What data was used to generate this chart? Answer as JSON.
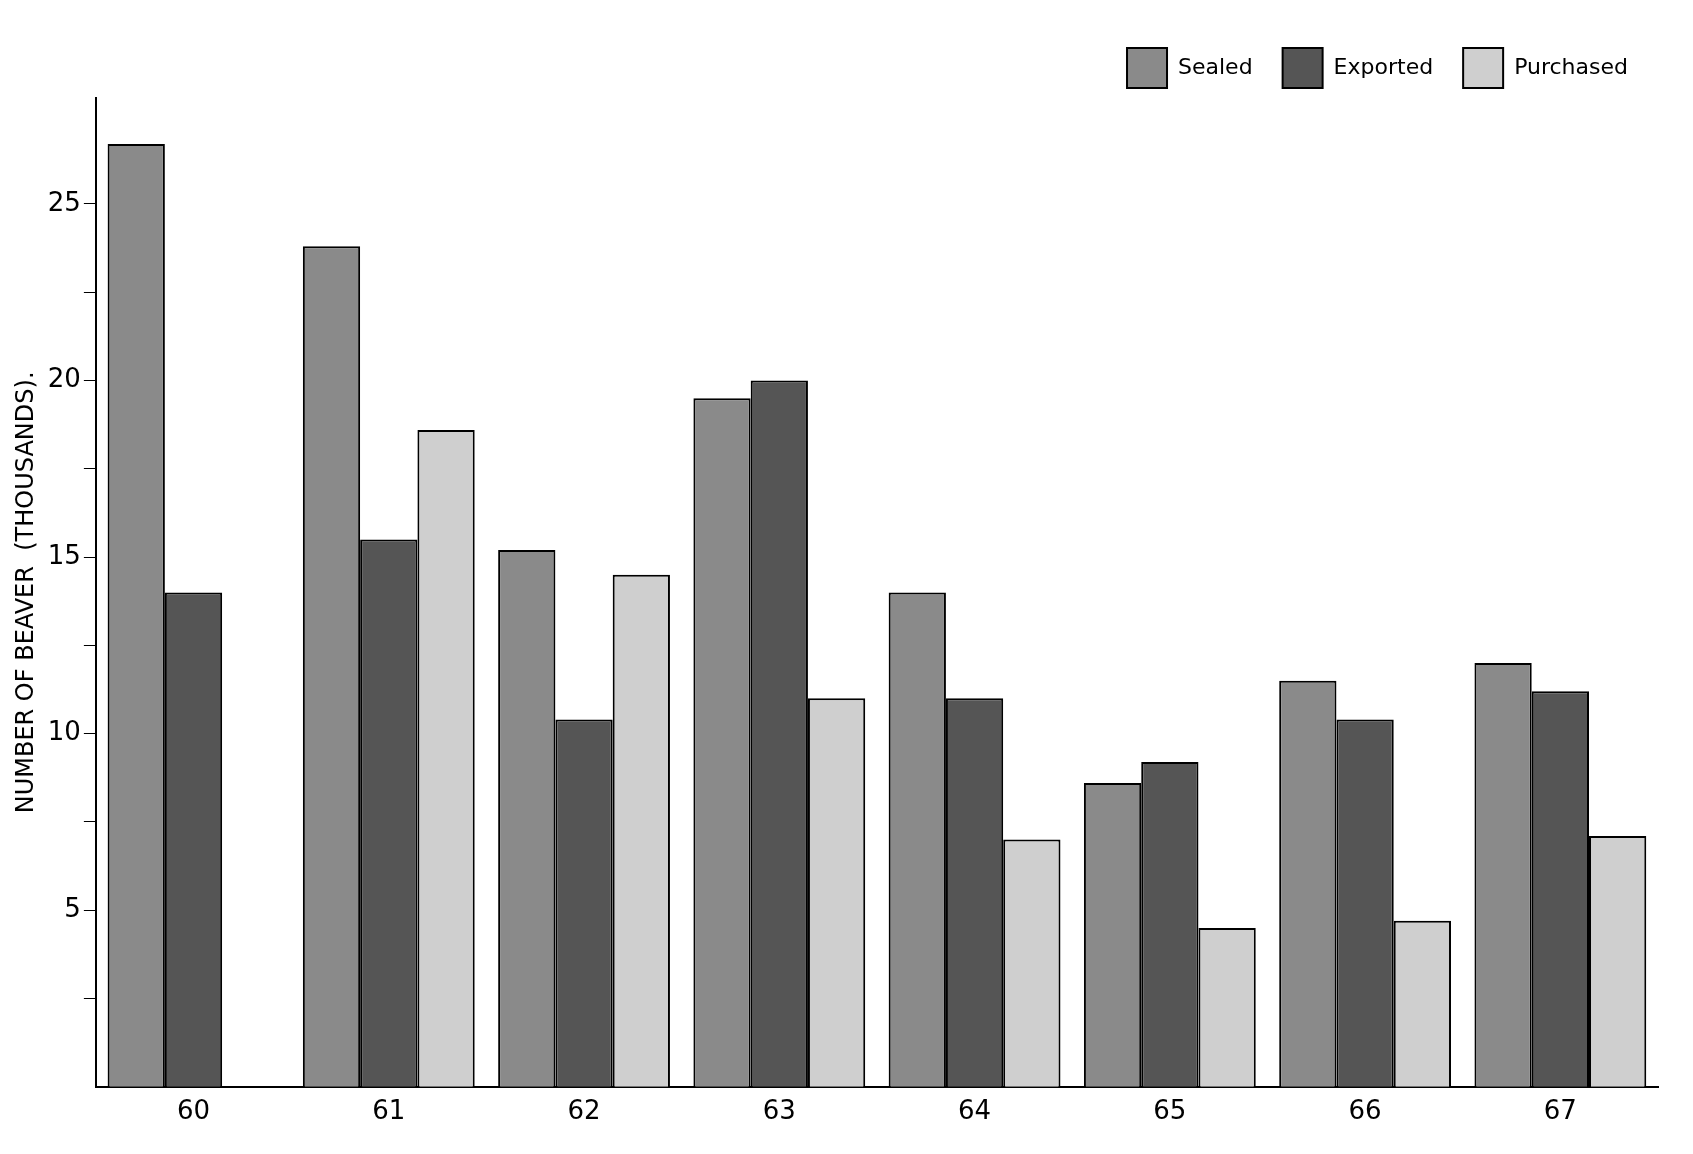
{
  "chart_data": {
    "type": "bar",
    "ylabel": "NUMBER OF BEAVER  (THOUSANDS).",
    "categories": [
      "60",
      "61",
      "62",
      "63",
      "64",
      "65",
      "66",
      "67"
    ],
    "series": [
      {
        "name": "Sealed",
        "color": "#8a8a8a",
        "values": [
          26.7,
          23.8,
          15.2,
          19.5,
          14.0,
          8.6,
          11.5,
          12.0
        ]
      },
      {
        "name": "Exported",
        "color": "#555555",
        "values": [
          14.0,
          15.5,
          10.4,
          20.0,
          11.0,
          9.2,
          10.4,
          11.2
        ]
      },
      {
        "name": "Purchased",
        "color": "#cfcfcf",
        "values": [
          null,
          18.6,
          14.5,
          11.0,
          7.0,
          4.5,
          4.7,
          7.1
        ]
      }
    ],
    "ylim": [
      0,
      28
    ],
    "yticks": [
      {
        "value": 2.5,
        "label": null
      },
      5,
      {
        "value": 7.5,
        "label": null
      },
      10,
      {
        "value": 12.5,
        "label": null
      },
      15,
      {
        "value": 17.5,
        "label": null
      },
      20,
      {
        "value": 22.5,
        "label": null
      },
      25
    ],
    "grid": false,
    "legend": "top right"
  }
}
